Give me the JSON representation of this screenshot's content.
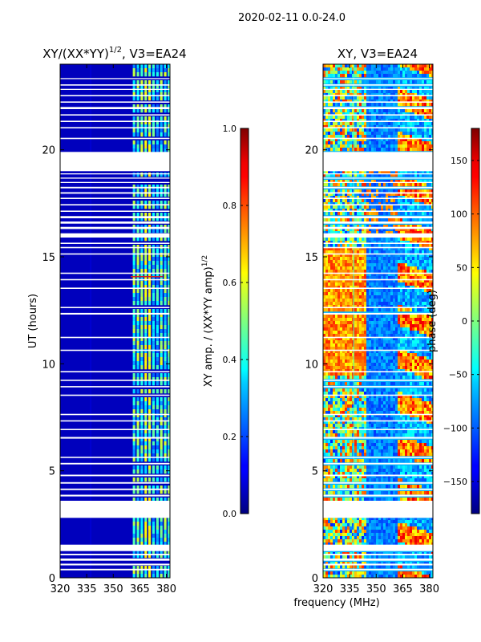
{
  "suptitle": "2020-02-11 0.0-24.0",
  "chart_data": [
    {
      "type": "heatmap",
      "title": "XY/(XX*YY)",
      "title_exponent": "1/2",
      "title_suffix": ", V3=EA24",
      "xlabel": "",
      "ylabel": "UT (hours)",
      "xlim": [
        320,
        382
      ],
      "ylim": [
        0,
        24
      ],
      "xticks": [
        320,
        335,
        350,
        365,
        380
      ],
      "yticks": [
        0,
        5,
        10,
        15,
        20
      ],
      "colorbar": {
        "label": "XY amp. / (XX*YY amp)",
        "label_exponent": "1/2",
        "range": [
          0.0,
          1.0
        ],
        "ticks": [
          "0.0",
          "0.2",
          "0.4",
          "0.6",
          "0.8",
          "1.0"
        ],
        "colormap": "jet"
      },
      "description": "Normalized amplitude near 0 (dark blue) below ~362 MHz, patchy 0.2-0.6 values (cyan/green/yellow) at 362-382 MHz"
    },
    {
      "type": "heatmap",
      "title": "XY",
      "title_suffix": ", V3=EA24",
      "xlabel": "frequency (MHz)",
      "ylabel": "",
      "xlim": [
        320,
        382
      ],
      "ylim": [
        0,
        24
      ],
      "xticks": [
        320,
        335,
        350,
        365,
        380
      ],
      "yticks": [
        5,
        10,
        15,
        20
      ],
      "colorbar": {
        "label": "phase (deg)",
        "range": [
          -180,
          180
        ],
        "ticks": [
          "-150",
          "-100",
          "-50",
          "0",
          "50",
          "100",
          "150"
        ],
        "colormap": "jet"
      },
      "description": "Phase varies widely; roughly +50 to +150 deg (orange/red) at 320-345 MHz during 10-15 UT, -100 to -150 deg (blue) at 345-365 MHz"
    }
  ],
  "flag_gaps_hours": [
    [
      0.35,
      0.42
    ],
    [
      0.58,
      0.66
    ],
    [
      0.8,
      0.9
    ],
    [
      1.05,
      1.12
    ],
    [
      1.25,
      1.55
    ],
    [
      2.8,
      3.6
    ],
    [
      3.8,
      3.88
    ],
    [
      4.1,
      4.17
    ],
    [
      4.4,
      4.47
    ],
    [
      4.75,
      4.82
    ],
    [
      5.3,
      5.37
    ],
    [
      5.6,
      5.66
    ],
    [
      6.5,
      6.58
    ],
    [
      6.9,
      6.96
    ],
    [
      7.3,
      7.36
    ],
    [
      7.6,
      7.66
    ],
    [
      8.5,
      8.56
    ],
    [
      8.9,
      8.96
    ],
    [
      9.2,
      9.26
    ],
    [
      9.6,
      9.66
    ],
    [
      10.6,
      10.66
    ],
    [
      11.2,
      11.26
    ],
    [
      12.3,
      12.38
    ],
    [
      12.6,
      12.66
    ],
    [
      13.5,
      13.56
    ],
    [
      13.9,
      13.96
    ],
    [
      14.2,
      14.26
    ],
    [
      15.1,
      15.16
    ],
    [
      15.4,
      15.46
    ],
    [
      15.6,
      15.66
    ],
    [
      15.9,
      16.1
    ],
    [
      16.3,
      16.4
    ],
    [
      16.55,
      16.65
    ],
    [
      16.8,
      16.9
    ],
    [
      17.1,
      17.16
    ],
    [
      17.4,
      17.46
    ],
    [
      17.7,
      17.76
    ],
    [
      17.95,
      18.02
    ],
    [
      18.2,
      18.27
    ],
    [
      18.45,
      18.5
    ],
    [
      18.65,
      18.7
    ],
    [
      18.85,
      18.9
    ],
    [
      19.0,
      19.9
    ],
    [
      20.5,
      20.56
    ],
    [
      21.0,
      21.06
    ],
    [
      21.3,
      21.36
    ],
    [
      21.6,
      21.66
    ],
    [
      21.9,
      22.0
    ],
    [
      22.2,
      22.26
    ],
    [
      22.5,
      22.56
    ],
    [
      22.8,
      22.85
    ],
    [
      23.0,
      23.06
    ],
    [
      23.3,
      23.35
    ]
  ]
}
